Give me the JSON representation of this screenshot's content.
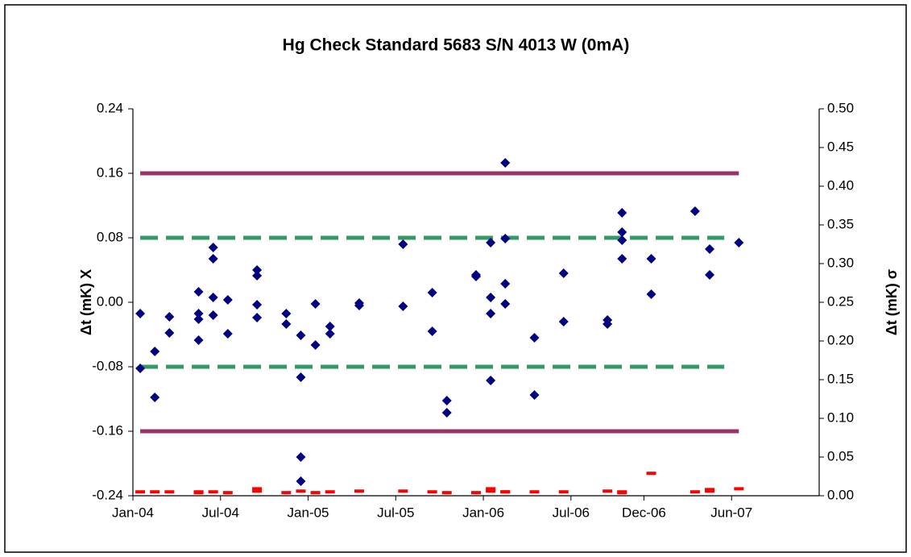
{
  "chart_data": {
    "type": "scatter",
    "title": "Hg Check Standard 5683 S/N 4013 W (0mA)",
    "ylabel": "Δt (mK) X",
    "y2label": "Δt (mK) σ",
    "xlim": [
      "2004-01",
      "2007-12"
    ],
    "xticks": [
      {
        "value": "2004-01",
        "label": "Jan-04"
      },
      {
        "value": "2004-07",
        "label": "Jul-04"
      },
      {
        "value": "2005-01",
        "label": "Jan-05"
      },
      {
        "value": "2005-07",
        "label": "Jul-05"
      },
      {
        "value": "2006-01",
        "label": "Jan-06"
      },
      {
        "value": "2006-07",
        "label": "Jul-06"
      },
      {
        "value": "2006-12",
        "label": "Dec-06"
      },
      {
        "value": "2007-06",
        "label": "Jun-07"
      }
    ],
    "ylim": [
      -0.24,
      0.24
    ],
    "yticks": [
      -0.24,
      -0.16,
      -0.08,
      {
        "value": 0,
        "label": "0.00"
      },
      0.08,
      0.16,
      0.24
    ],
    "y2lim": [
      0,
      0.5
    ],
    "y2ticks": [
      {
        "value": 0,
        "label": "0.00"
      },
      0.05,
      {
        "value": 0.1,
        "label": "0.10"
      },
      0.15,
      {
        "value": 0.2,
        "label": "0.20"
      },
      0.25,
      {
        "value": 0.3,
        "label": "0.30"
      },
      0.35,
      {
        "value": 0.4,
        "label": "0.40"
      },
      0.45,
      {
        "value": 0.5,
        "label": "0.50"
      }
    ],
    "lines": [
      {
        "value": 0.16,
        "x": [
          "2004-01",
          "2007-06"
        ],
        "color": "#993366",
        "style": "solid"
      },
      {
        "value": -0.16,
        "x": [
          "2004-01",
          "2007-06"
        ],
        "color": "#993366",
        "style": "solid"
      },
      {
        "value": 0.08,
        "x": [
          "2004-01",
          "2007-05"
        ],
        "color": "#339966",
        "style": "dashed"
      },
      {
        "value": -0.08,
        "x": [
          "2004-01",
          "2007-05"
        ],
        "color": "#339966",
        "style": "dashed"
      }
    ],
    "series": [
      {
        "color": "#000080",
        "marker": "diamond",
        "x": [
          "2004-01",
          "2004-01",
          "2004-02",
          "2004-02",
          "2004-03",
          "2004-03",
          "2004-05",
          "2004-05",
          "2004-05",
          "2004-05",
          "2004-06",
          "2004-06",
          "2004-06",
          "2004-06",
          "2004-07",
          "2004-07",
          "2004-09",
          "2004-09",
          "2004-09",
          "2004-09",
          "2004-11",
          "2004-11",
          "2004-12",
          "2004-12",
          "2004-12",
          "2004-12",
          "2005-01",
          "2005-01",
          "2005-02",
          "2005-02",
          "2005-04",
          "2005-04",
          "2005-07",
          "2005-07",
          "2005-09",
          "2005-09",
          "2005-10",
          "2005-10",
          "2005-12",
          "2005-12",
          "2006-01",
          "2006-01",
          "2006-01",
          "2006-01",
          "2006-02",
          "2006-02",
          "2006-02",
          "2006-02",
          "2006-04",
          "2006-04",
          "2006-06",
          "2006-06",
          "2006-09",
          "2006-09",
          "2006-10",
          "2006-10",
          "2006-10",
          "2006-10",
          "2006-12",
          "2006-12",
          "2007-03",
          "2007-04",
          "2007-04",
          "2007-06"
        ],
        "values": [
          -0.014,
          -0.082,
          -0.061,
          -0.118,
          -0.018,
          -0.038,
          -0.014,
          -0.047,
          0.013,
          -0.021,
          0.006,
          -0.016,
          0.068,
          0.054,
          0.003,
          -0.039,
          0.04,
          -0.003,
          0.033,
          -0.019,
          -0.014,
          -0.027,
          -0.041,
          -0.093,
          -0.192,
          -0.222,
          -0.002,
          -0.053,
          -0.03,
          -0.039,
          -0.001,
          -0.004,
          -0.005,
          0.072,
          0.012,
          -0.036,
          -0.122,
          -0.137,
          0.034,
          0.032,
          -0.014,
          -0.097,
          0.074,
          0.006,
          0.023,
          -0.002,
          0.079,
          0.173,
          -0.044,
          -0.115,
          0.036,
          -0.024,
          -0.022,
          -0.027,
          0.077,
          0.054,
          0.111,
          0.087,
          0.054,
          0.01,
          0.113,
          0.034,
          0.066,
          0.074
        ]
      },
      {
        "color": "#ff0000",
        "marker": "dash",
        "axis": "y2",
        "x": [
          "2004-01",
          "2004-02",
          "2004-03",
          "2004-05",
          "2004-05",
          "2004-06",
          "2004-07",
          "2004-09",
          "2004-09",
          "2004-11",
          "2004-12",
          "2005-01",
          "2005-02",
          "2005-04",
          "2005-07",
          "2005-09",
          "2005-10",
          "2005-12",
          "2006-01",
          "2006-01",
          "2006-02",
          "2006-02",
          "2006-04",
          "2006-06",
          "2006-09",
          "2006-10",
          "2006-10",
          "2006-12",
          "2007-03",
          "2007-04",
          "2007-04",
          "2007-06"
        ],
        "values": [
          0.005,
          0.005,
          0.005,
          0.005,
          0.004,
          0.005,
          0.004,
          0.009,
          0.006,
          0.004,
          0.006,
          0.004,
          0.005,
          0.006,
          0.006,
          0.005,
          0.004,
          0.004,
          0.009,
          0.006,
          0.005,
          0.005,
          0.005,
          0.005,
          0.006,
          0.005,
          0.004,
          0.029,
          0.005,
          0.006,
          0.008,
          0.009
        ]
      }
    ]
  }
}
